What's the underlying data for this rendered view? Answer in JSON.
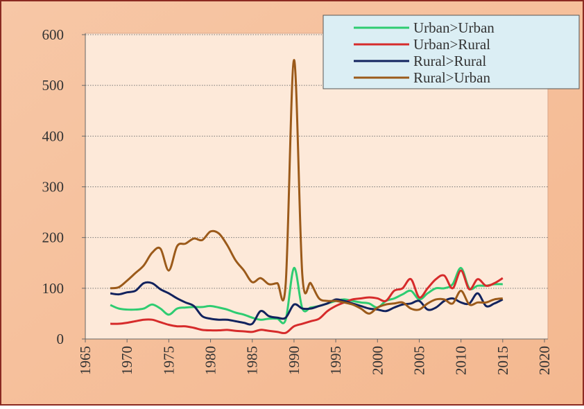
{
  "chart_data": {
    "type": "line",
    "x": [
      1968,
      1969,
      1970,
      1971,
      1972,
      1973,
      1974,
      1975,
      1976,
      1977,
      1978,
      1979,
      1980,
      1981,
      1982,
      1983,
      1984,
      1985,
      1986,
      1987,
      1988,
      1989,
      1990,
      1991,
      1992,
      1993,
      1994,
      1995,
      1996,
      1997,
      1998,
      1999,
      2000,
      2001,
      2002,
      2003,
      2004,
      2005,
      2006,
      2007,
      2008,
      2009,
      2010,
      2011,
      2012,
      2013,
      2014,
      2015
    ],
    "series": [
      {
        "name": "Urban>Urban",
        "color": "#2ecc71",
        "values": [
          67,
          60,
          58,
          58,
          60,
          68,
          60,
          48,
          60,
          62,
          63,
          63,
          65,
          62,
          58,
          52,
          48,
          42,
          38,
          40,
          40,
          38,
          140,
          60,
          62,
          65,
          70,
          75,
          78,
          75,
          72,
          70,
          62,
          75,
          80,
          88,
          95,
          78,
          90,
          100,
          100,
          108,
          140,
          100,
          105,
          105,
          108,
          108
        ]
      },
      {
        "name": "Urban>Rural",
        "color": "#d62b2b",
        "values": [
          30,
          30,
          32,
          35,
          38,
          38,
          33,
          28,
          25,
          25,
          22,
          18,
          17,
          17,
          18,
          16,
          15,
          14,
          18,
          16,
          14,
          12,
          25,
          30,
          35,
          40,
          55,
          65,
          72,
          78,
          80,
          82,
          80,
          75,
          95,
          100,
          118,
          82,
          100,
          118,
          125,
          100,
          135,
          98,
          118,
          105,
          110,
          120
        ]
      },
      {
        "name": "Rural>Rural",
        "color": "#12235e",
        "values": [
          90,
          88,
          92,
          95,
          110,
          110,
          98,
          90,
          80,
          72,
          65,
          45,
          40,
          38,
          38,
          35,
          32,
          30,
          55,
          45,
          42,
          42,
          68,
          60,
          60,
          65,
          70,
          78,
          75,
          70,
          65,
          60,
          58,
          55,
          62,
          68,
          70,
          75,
          58,
          62,
          75,
          80,
          72,
          70,
          90,
          65,
          70,
          78
        ]
      },
      {
        "name": "Rural>Urban",
        "color": "#9b5a1a",
        "values": [
          100,
          102,
          115,
          130,
          145,
          170,
          178,
          135,
          183,
          188,
          198,
          195,
          212,
          208,
          185,
          155,
          135,
          112,
          120,
          108,
          110,
          108,
          550,
          125,
          110,
          80,
          75,
          75,
          72,
          68,
          60,
          50,
          62,
          68,
          70,
          72,
          60,
          58,
          70,
          78,
          78,
          70,
          95,
          68,
          72,
          72,
          78,
          80
        ]
      }
    ],
    "xlim": [
      1965,
      2020
    ],
    "xticks": [
      1965,
      1970,
      1975,
      1980,
      1985,
      1990,
      1995,
      2000,
      2005,
      2010,
      2015,
      2020
    ],
    "ylim": [
      0,
      600
    ],
    "yticks": [
      0,
      100,
      200,
      300,
      400,
      500,
      600
    ],
    "grid": true,
    "legend": "upper right"
  }
}
